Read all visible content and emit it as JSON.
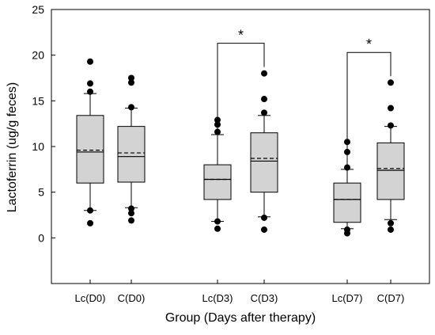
{
  "chart_data": {
    "type": "box",
    "xlabel": "Group (Days after therapy)",
    "ylabel": "Lactoferrin (ug/g feces)",
    "ylim": [
      -5,
      25
    ],
    "yticks": [
      0,
      5,
      10,
      15,
      20,
      25
    ],
    "grid": false,
    "colors": {
      "box_fill": "#d3d3d3",
      "stroke": "#000000",
      "point": "#000000"
    },
    "categories": [
      "Lc(D0)",
      "C(D0)",
      "Lc(D3)",
      "C(D3)",
      "Lc(D7)",
      "C(D7)"
    ],
    "boxes": [
      {
        "category": "Lc(D0)",
        "whisker_low": 3.0,
        "q1": 6.0,
        "median": 9.4,
        "mean": 9.6,
        "q3": 13.4,
        "whisker_high": 15.8,
        "outliers": [
          1.6,
          3.0,
          16.0,
          16.9,
          19.3
        ]
      },
      {
        "category": "C(D0)",
        "whisker_low": 3.3,
        "q1": 6.1,
        "median": 8.9,
        "mean": 9.3,
        "q3": 12.2,
        "whisker_high": 14.2,
        "outliers": [
          1.9,
          2.7,
          3.2,
          14.3,
          17.0,
          17.5
        ]
      },
      {
        "category": "Lc(D3)",
        "whisker_low": 1.8,
        "q1": 4.2,
        "median": 6.4,
        "mean": 6.4,
        "q3": 8.0,
        "whisker_high": 11.3,
        "outliers": [
          1.0,
          1.8,
          11.6,
          12.4,
          12.9
        ]
      },
      {
        "category": "C(D3)",
        "whisker_low": 2.3,
        "q1": 5.0,
        "median": 8.4,
        "mean": 8.7,
        "q3": 11.5,
        "whisker_high": 13.4,
        "outliers": [
          0.9,
          2.2,
          13.7,
          15.2,
          18.0
        ]
      },
      {
        "category": "Lc(D7)",
        "whisker_low": 1.0,
        "q1": 1.7,
        "median": 4.2,
        "mean": 4.2,
        "q3": 6.0,
        "whisker_high": 7.5,
        "outliers": [
          0.5,
          0.9,
          7.7,
          9.4,
          10.5
        ]
      },
      {
        "category": "C(D7)",
        "whisker_low": 2.0,
        "q1": 4.2,
        "median": 7.4,
        "mean": 7.6,
        "q3": 10.4,
        "whisker_high": 12.2,
        "outliers": [
          0.9,
          1.6,
          12.3,
          14.2,
          17.0
        ]
      }
    ],
    "annotations": [
      {
        "from": "Lc(D3)",
        "to": "C(D3)",
        "label": "*"
      },
      {
        "from": "Lc(D7)",
        "to": "C(D7)",
        "label": "*"
      }
    ]
  }
}
